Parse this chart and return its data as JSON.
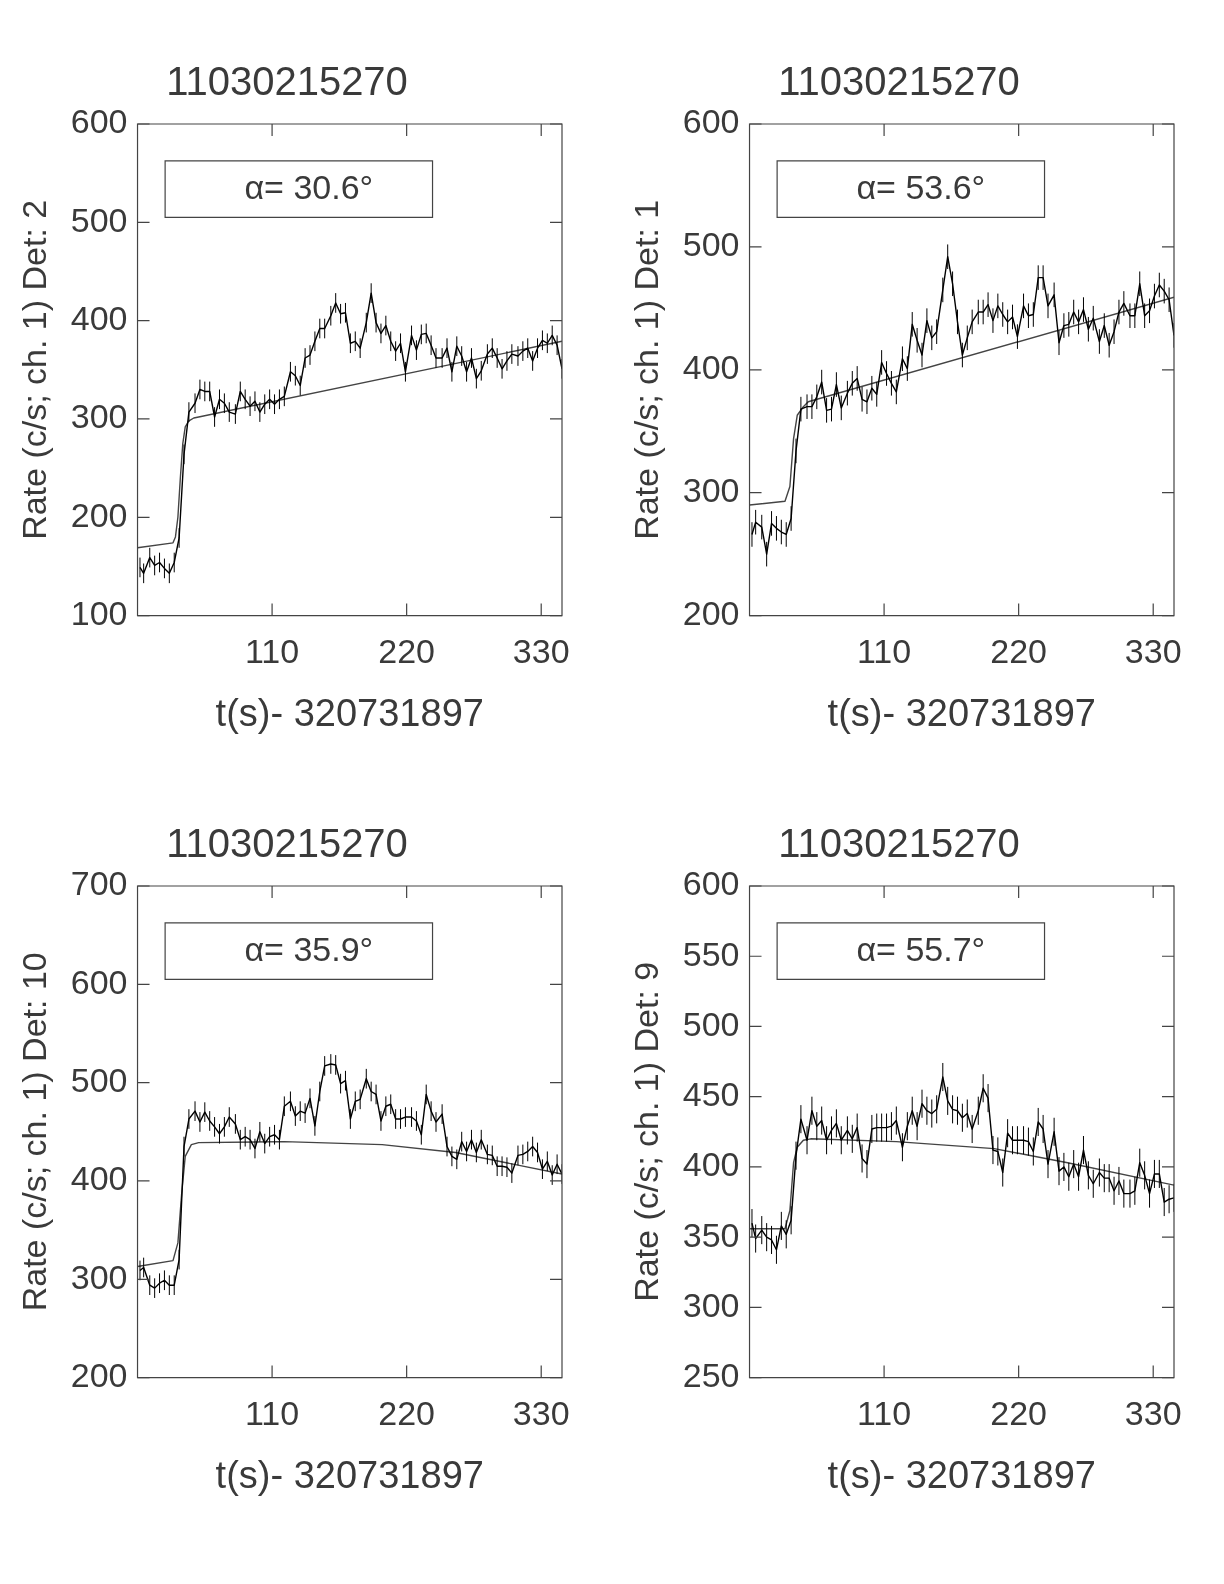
{
  "chart_data": [
    {
      "type": "line",
      "title": "11030215270",
      "xlabel": "t(s)- 320731897",
      "ylabel": "Rate (c/s; ch. 1) Det: 2",
      "annotations": [
        "α= 30.6°"
      ],
      "marker": "none",
      "xlim": [
        0,
        347
      ],
      "xticks": [
        110,
        220,
        330
      ],
      "ylim": [
        100,
        600
      ],
      "yticks": [
        100,
        200,
        300,
        400,
        500,
        600
      ],
      "x": [
        2,
        5,
        10,
        14,
        18,
        22,
        26,
        30,
        34,
        38,
        42,
        47,
        51,
        55,
        59,
        63,
        67,
        71,
        75,
        80,
        84,
        88,
        92,
        96,
        100,
        104,
        108,
        112,
        116,
        120,
        125,
        129,
        133,
        137,
        141,
        145,
        149,
        153,
        158,
        162,
        166,
        170,
        174,
        178,
        182,
        187,
        191,
        195,
        199,
        203,
        207,
        211,
        215,
        219,
        224,
        228,
        232,
        236,
        240,
        244,
        249,
        253,
        257,
        261,
        265,
        269,
        273,
        277,
        281,
        286,
        290,
        294,
        298,
        302,
        306,
        311,
        315,
        319,
        323,
        327,
        331,
        335,
        339,
        343,
        347
      ],
      "series": [
        {
          "color": "#000000",
          "values": [
            149,
            143,
            159,
            151,
            154,
            148,
            143,
            154,
            179,
            264,
            307,
            316,
            330,
            328,
            328,
            302,
            320,
            316,
            307,
            305,
            328,
            320,
            313,
            318,
            307,
            315,
            320,
            315,
            320,
            323,
            348,
            344,
            334,
            362,
            365,
            379,
            392,
            392,
            405,
            418,
            407,
            408,
            377,
            379,
            372,
            398,
            428,
            398,
            387,
            395,
            379,
            369,
            377,
            348,
            385,
            370,
            386,
            387,
            375,
            362,
            362,
            372,
            348,
            374,
            364,
            348,
            362,
            341,
            349,
            366,
            372,
            362,
            351,
            359,
            366,
            364,
            369,
            372,
            359,
            372,
            380,
            377,
            385,
            375,
            351
          ],
          "errors": [
            10,
            10,
            10,
            10,
            10,
            10,
            10,
            10,
            10,
            10,
            10,
            10,
            10,
            10,
            10,
            10,
            10,
            10,
            10,
            10,
            10,
            10,
            10,
            10,
            10,
            10,
            10,
            10,
            10,
            10,
            10,
            10,
            10,
            10,
            10,
            10,
            10,
            10,
            10,
            10,
            10,
            10,
            10,
            10,
            10,
            10,
            10,
            10,
            10,
            10,
            10,
            10,
            10,
            10,
            10,
            10,
            10,
            10,
            10,
            10,
            10,
            10,
            10,
            10,
            10,
            10,
            10,
            10,
            10,
            10,
            10,
            10,
            10,
            10,
            10,
            10,
            10,
            10,
            10,
            10,
            10,
            10,
            10,
            10,
            10
          ]
        },
        {
          "color": "#444444",
          "x": [
            0,
            29,
            31,
            33,
            35,
            37,
            39,
            42,
            46,
            50,
            347
          ],
          "values": [
            169,
            174,
            180,
            200,
            240,
            275,
            292,
            298,
            301,
            302,
            379
          ]
        }
      ]
    },
    {
      "type": "line",
      "title": "11030215270",
      "xlabel": "t(s)- 320731897",
      "ylabel": "Rate (c/s; ch. 1) Det: 1",
      "annotations": [
        "α= 53.6°"
      ],
      "marker": "none",
      "xlim": [
        0,
        347
      ],
      "xticks": [
        110,
        220,
        330
      ],
      "ylim": [
        200,
        600
      ],
      "yticks": [
        200,
        300,
        400,
        500,
        600
      ],
      "x": [
        2,
        5,
        10,
        14,
        18,
        22,
        26,
        30,
        34,
        38,
        42,
        47,
        51,
        55,
        59,
        63,
        67,
        71,
        75,
        80,
        84,
        88,
        92,
        96,
        100,
        104,
        108,
        112,
        116,
        120,
        125,
        129,
        133,
        137,
        141,
        145,
        149,
        153,
        158,
        162,
        166,
        170,
        174,
        178,
        182,
        187,
        191,
        195,
        199,
        203,
        207,
        211,
        215,
        219,
        224,
        228,
        232,
        236,
        240,
        244,
        249,
        253,
        257,
        261,
        265,
        269,
        273,
        277,
        281,
        286,
        290,
        294,
        298,
        302,
        306,
        311,
        315,
        319,
        323,
        327,
        331,
        335,
        339,
        343,
        347
      ],
      "series": [
        {
          "color": "#000000",
          "values": [
            266,
            276,
            272,
            250,
            275,
            271,
            268,
            266,
            279,
            334,
            368,
            370,
            370,
            378,
            390,
            367,
            368,
            388,
            369,
            381,
            389,
            393,
            376,
            374,
            385,
            380,
            406,
            397,
            389,
            382,
            409,
            401,
            437,
            424,
            412,
            440,
            426,
            431,
            465,
            492,
            470,
            439,
            412,
            426,
            439,
            447,
            447,
            453,
            440,
            452,
            445,
            439,
            443,
            427,
            452,
            444,
            445,
            475,
            475,
            452,
            461,
            422,
            436,
            437,
            447,
            439,
            449,
            433,
            442,
            423,
            436,
            420,
            431,
            447,
            454,
            444,
            444,
            470,
            444,
            448,
            460,
            469,
            464,
            457,
            428
          ],
          "errors": [
            10,
            10,
            10,
            10,
            10,
            10,
            10,
            10,
            10,
            10,
            10,
            10,
            10,
            10,
            10,
            10,
            10,
            10,
            10,
            10,
            10,
            10,
            10,
            10,
            10,
            10,
            10,
            10,
            10,
            10,
            10,
            10,
            10,
            10,
            10,
            10,
            10,
            10,
            10,
            10,
            10,
            10,
            10,
            10,
            10,
            10,
            10,
            10,
            10,
            10,
            10,
            10,
            10,
            10,
            10,
            10,
            10,
            10,
            10,
            10,
            10,
            10,
            10,
            10,
            10,
            10,
            10,
            10,
            10,
            10,
            10,
            10,
            10,
            10,
            10,
            10,
            10,
            10,
            10,
            10,
            10,
            10,
            10,
            10,
            10
          ]
        },
        {
          "color": "#444444",
          "x": [
            0,
            29,
            33,
            36,
            39,
            44,
            48,
            347
          ],
          "values": [
            290,
            293,
            305,
            344,
            363,
            370,
            374,
            459
          ]
        }
      ]
    },
    {
      "type": "line",
      "title": "11030215270",
      "xlabel": "t(s)- 320731897",
      "ylabel": "Rate (c/s; ch. 1) Det: 10",
      "annotations": [
        "α= 35.9°"
      ],
      "marker": "none",
      "xlim": [
        0,
        347
      ],
      "xticks": [
        110,
        220,
        330
      ],
      "ylim": [
        200,
        700
      ],
      "yticks": [
        200,
        300,
        400,
        500,
        600,
        700
      ],
      "x": [
        2,
        5,
        10,
        14,
        18,
        22,
        26,
        30,
        34,
        38,
        42,
        47,
        51,
        55,
        59,
        63,
        67,
        71,
        75,
        80,
        84,
        88,
        92,
        96,
        100,
        104,
        108,
        112,
        116,
        120,
        125,
        129,
        133,
        137,
        141,
        145,
        149,
        153,
        158,
        162,
        166,
        170,
        174,
        178,
        182,
        187,
        191,
        195,
        199,
        203,
        207,
        211,
        215,
        219,
        224,
        228,
        232,
        236,
        240,
        244,
        249,
        253,
        257,
        261,
        265,
        269,
        273,
        277,
        281,
        286,
        290,
        294,
        298,
        302,
        306,
        311,
        315,
        319,
        323,
        327,
        331,
        335,
        339,
        343,
        347
      ],
      "series": [
        {
          "color": "#000000",
          "values": [
            309,
            312,
            294,
            291,
            296,
            299,
            294,
            294,
            320,
            435,
            463,
            471,
            460,
            470,
            461,
            455,
            448,
            455,
            465,
            458,
            442,
            445,
            442,
            433,
            450,
            438,
            445,
            447,
            442,
            476,
            481,
            466,
            471,
            469,
            484,
            456,
            491,
            517,
            519,
            518,
            499,
            502,
            463,
            481,
            483,
            504,
            491,
            488,
            461,
            476,
            478,
            463,
            463,
            465,
            465,
            461,
            447,
            488,
            471,
            460,
            468,
            435,
            425,
            422,
            440,
            430,
            442,
            429,
            442,
            427,
            426,
            415,
            415,
            414,
            408,
            426,
            427,
            430,
            435,
            429,
            412,
            420,
            406,
            417,
            407
          ],
          "errors": [
            10,
            10,
            10,
            10,
            10,
            10,
            10,
            10,
            10,
            10,
            10,
            10,
            10,
            10,
            10,
            10,
            10,
            10,
            10,
            10,
            10,
            10,
            10,
            10,
            10,
            10,
            10,
            10,
            10,
            10,
            10,
            10,
            10,
            10,
            10,
            10,
            10,
            10,
            10,
            10,
            10,
            10,
            10,
            10,
            10,
            10,
            10,
            10,
            10,
            10,
            10,
            10,
            10,
            10,
            10,
            10,
            10,
            10,
            10,
            10,
            10,
            10,
            10,
            10,
            10,
            10,
            10,
            10,
            10,
            10,
            10,
            10,
            10,
            10,
            10,
            10,
            10,
            10,
            10,
            10,
            10,
            10,
            10,
            10,
            10
          ]
        },
        {
          "color": "#444444",
          "x": [
            0,
            29,
            33,
            36,
            39,
            44,
            50,
            120,
            200,
            260,
            347
          ],
          "values": [
            313,
            319,
            337,
            386,
            425,
            437,
            439,
            440,
            437,
            429,
            407
          ]
        }
      ]
    },
    {
      "type": "line",
      "title": "11030215270",
      "xlabel": "t(s)- 320731897",
      "ylabel": "Rate (c/s; ch. 1) Det: 9",
      "annotations": [
        "α= 55.7°"
      ],
      "marker": "none",
      "xlim": [
        0,
        347
      ],
      "xticks": [
        110,
        220,
        330
      ],
      "ylim": [
        250,
        600
      ],
      "yticks": [
        250,
        300,
        350,
        400,
        450,
        500,
        550,
        600
      ],
      "x": [
        2,
        5,
        10,
        14,
        18,
        22,
        26,
        30,
        34,
        38,
        42,
        47,
        51,
        55,
        59,
        63,
        67,
        71,
        75,
        80,
        84,
        88,
        92,
        96,
        100,
        104,
        108,
        112,
        116,
        120,
        125,
        129,
        133,
        137,
        141,
        145,
        149,
        153,
        158,
        162,
        166,
        170,
        174,
        178,
        182,
        187,
        191,
        195,
        199,
        203,
        207,
        211,
        215,
        219,
        224,
        228,
        232,
        236,
        240,
        244,
        249,
        253,
        257,
        261,
        265,
        269,
        273,
        277,
        281,
        286,
        290,
        294,
        298,
        302,
        306,
        311,
        315,
        319,
        323,
        327,
        331,
        335,
        339,
        343,
        347
      ],
      "series": [
        {
          "color": "#000000",
          "values": [
            360,
            349,
            355,
            350,
            348,
            341,
            358,
            352,
            362,
            408,
            434,
            419,
            440,
            429,
            433,
            419,
            426,
            431,
            419,
            426,
            420,
            428,
            406,
            402,
            427,
            428,
            428,
            428,
            429,
            433,
            414,
            429,
            440,
            429,
            445,
            440,
            438,
            441,
            464,
            447,
            441,
            440,
            435,
            438,
            427,
            440,
            456,
            449,
            412,
            411,
            396,
            424,
            419,
            419,
            419,
            418,
            411,
            432,
            427,
            402,
            425,
            397,
            400,
            393,
            402,
            393,
            412,
            394,
            388,
            396,
            392,
            392,
            383,
            390,
            381,
            381,
            383,
            403,
            394,
            381,
            395,
            395,
            375,
            377,
            378
          ],
          "errors": [
            10,
            10,
            10,
            10,
            10,
            10,
            10,
            10,
            10,
            10,
            10,
            10,
            10,
            10,
            10,
            10,
            10,
            10,
            10,
            10,
            10,
            10,
            10,
            10,
            10,
            10,
            10,
            10,
            10,
            10,
            10,
            10,
            10,
            10,
            10,
            10,
            10,
            10,
            10,
            10,
            10,
            10,
            10,
            10,
            10,
            10,
            10,
            10,
            10,
            10,
            10,
            10,
            10,
            10,
            10,
            10,
            10,
            10,
            10,
            10,
            10,
            10,
            10,
            10,
            10,
            10,
            10,
            10,
            10,
            10,
            10,
            10,
            10,
            10,
            10,
            10,
            10,
            10,
            10,
            10,
            10,
            10,
            10,
            10,
            10
          ]
        },
        {
          "color": "#444444",
          "x": [
            0,
            29,
            33,
            36,
            39,
            44,
            50,
            120,
            200,
            260,
            347
          ],
          "values": [
            356,
            356,
            369,
            403,
            414,
            419,
            420,
            418,
            413,
            403,
            387
          ]
        }
      ]
    }
  ]
}
